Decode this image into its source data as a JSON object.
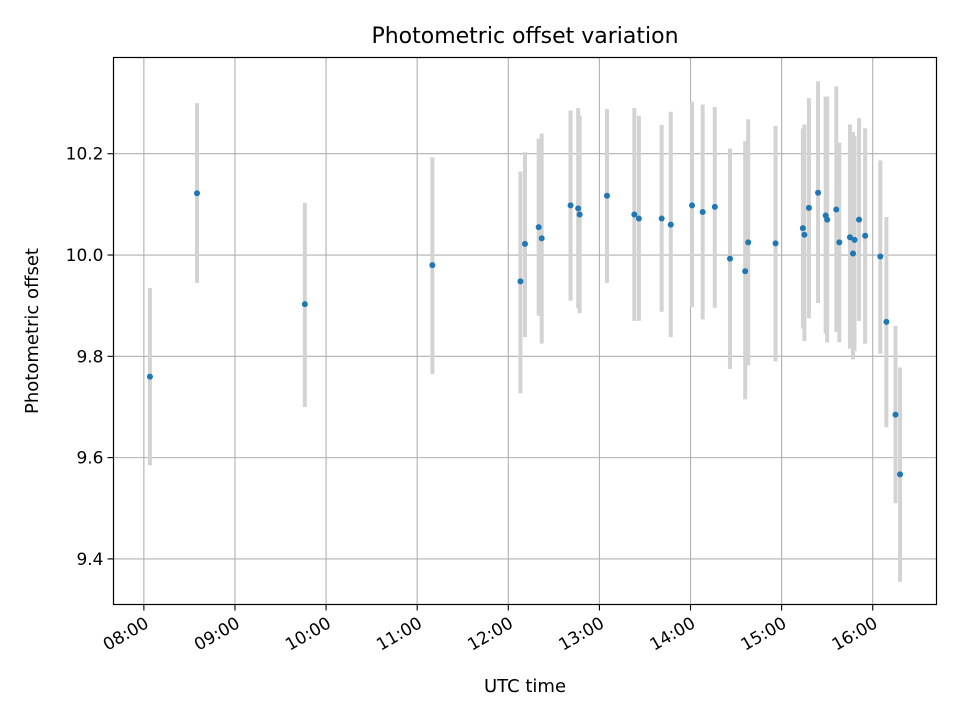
{
  "chart_data": {
    "type": "scatter",
    "title": "Photometric offset variation",
    "xlabel": "UTC time",
    "ylabel": "Photometric offset",
    "x_tick_labels": [
      "08:00",
      "09:00",
      "10:00",
      "11:00",
      "12:00",
      "13:00",
      "14:00",
      "15:00",
      "16:00"
    ],
    "y_tick_labels": [
      "9.4",
      "9.6",
      "9.8",
      "10.0",
      "10.2"
    ],
    "y_ticks": [
      9.4,
      9.6,
      9.8,
      10.0,
      10.2
    ],
    "xlim": [
      "07:40",
      "16:42"
    ],
    "ylim": [
      9.31,
      10.39
    ],
    "grid": true,
    "point_color": "#1f77b4",
    "errorbar_color": "#d3d3d3",
    "points": [
      {
        "x": "08:04",
        "y": 9.76,
        "yerr_low": 9.585,
        "yerr_high": 9.935
      },
      {
        "x": "08:35",
        "y": 10.122,
        "yerr_low": 9.945,
        "yerr_high": 10.3
      },
      {
        "x": "09:46",
        "y": 9.903,
        "yerr_low": 9.7,
        "yerr_high": 10.103
      },
      {
        "x": "11:10",
        "y": 9.98,
        "yerr_low": 9.765,
        "yerr_high": 10.193
      },
      {
        "x": "12:08",
        "y": 9.948,
        "yerr_low": 9.727,
        "yerr_high": 10.165
      },
      {
        "x": "12:11",
        "y": 10.022,
        "yerr_low": 9.838,
        "yerr_high": 10.203
      },
      {
        "x": "12:20",
        "y": 10.055,
        "yerr_low": 9.88,
        "yerr_high": 10.23
      },
      {
        "x": "12:22",
        "y": 10.033,
        "yerr_low": 9.825,
        "yerr_high": 10.24
      },
      {
        "x": "12:41",
        "y": 10.098,
        "yerr_low": 9.91,
        "yerr_high": 10.285
      },
      {
        "x": "12:46",
        "y": 10.092,
        "yerr_low": 9.895,
        "yerr_high": 10.29
      },
      {
        "x": "12:47",
        "y": 10.08,
        "yerr_low": 9.885,
        "yerr_high": 10.275
      },
      {
        "x": "13:05",
        "y": 10.117,
        "yerr_low": 9.945,
        "yerr_high": 10.288
      },
      {
        "x": "13:23",
        "y": 10.08,
        "yerr_low": 9.87,
        "yerr_high": 10.29
      },
      {
        "x": "13:26",
        "y": 10.072,
        "yerr_low": 9.87,
        "yerr_high": 10.275
      },
      {
        "x": "13:41",
        "y": 10.072,
        "yerr_low": 9.888,
        "yerr_high": 10.257
      },
      {
        "x": "13:47",
        "y": 10.06,
        "yerr_low": 9.838,
        "yerr_high": 10.283
      },
      {
        "x": "14:01",
        "y": 10.098,
        "yerr_low": 9.897,
        "yerr_high": 10.303
      },
      {
        "x": "14:08",
        "y": 10.085,
        "yerr_low": 9.873,
        "yerr_high": 10.297
      },
      {
        "x": "14:16",
        "y": 10.095,
        "yerr_low": 9.896,
        "yerr_high": 10.292
      },
      {
        "x": "14:26",
        "y": 9.993,
        "yerr_low": 9.775,
        "yerr_high": 10.21
      },
      {
        "x": "14:36",
        "y": 9.968,
        "yerr_low": 9.715,
        "yerr_high": 10.225
      },
      {
        "x": "14:38",
        "y": 10.025,
        "yerr_low": 9.782,
        "yerr_high": 10.268
      },
      {
        "x": "14:56",
        "y": 10.023,
        "yerr_low": 9.79,
        "yerr_high": 10.255
      },
      {
        "x": "15:14",
        "y": 10.053,
        "yerr_low": 9.855,
        "yerr_high": 10.25
      },
      {
        "x": "15:15",
        "y": 10.04,
        "yerr_low": 9.83,
        "yerr_high": 10.258
      },
      {
        "x": "15:18",
        "y": 10.093,
        "yerr_low": 9.875,
        "yerr_high": 10.31
      },
      {
        "x": "15:24",
        "y": 10.123,
        "yerr_low": 9.905,
        "yerr_high": 10.343
      },
      {
        "x": "15:29",
        "y": 10.078,
        "yerr_low": 9.845,
        "yerr_high": 10.313
      },
      {
        "x": "15:30",
        "y": 10.07,
        "yerr_low": 9.827,
        "yerr_high": 10.313
      },
      {
        "x": "15:36",
        "y": 10.09,
        "yerr_low": 9.848,
        "yerr_high": 10.333
      },
      {
        "x": "15:38",
        "y": 10.025,
        "yerr_low": 9.828,
        "yerr_high": 10.222
      },
      {
        "x": "15:45",
        "y": 10.035,
        "yerr_low": 9.815,
        "yerr_high": 10.258
      },
      {
        "x": "15:47",
        "y": 10.003,
        "yerr_low": 9.794,
        "yerr_high": 10.243
      },
      {
        "x": "15:48",
        "y": 10.03,
        "yerr_low": 9.81,
        "yerr_high": 10.235
      },
      {
        "x": "15:51",
        "y": 10.07,
        "yerr_low": 9.87,
        "yerr_high": 10.27
      },
      {
        "x": "15:55",
        "y": 10.038,
        "yerr_low": 9.825,
        "yerr_high": 10.25
      },
      {
        "x": "16:05",
        "y": 9.997,
        "yerr_low": 9.805,
        "yerr_high": 10.187
      },
      {
        "x": "16:09",
        "y": 9.868,
        "yerr_low": 9.66,
        "yerr_high": 10.075
      },
      {
        "x": "16:15",
        "y": 9.685,
        "yerr_low": 9.51,
        "yerr_high": 9.86
      },
      {
        "x": "16:18",
        "y": 9.567,
        "yerr_low": 9.355,
        "yerr_high": 9.778
      }
    ]
  }
}
